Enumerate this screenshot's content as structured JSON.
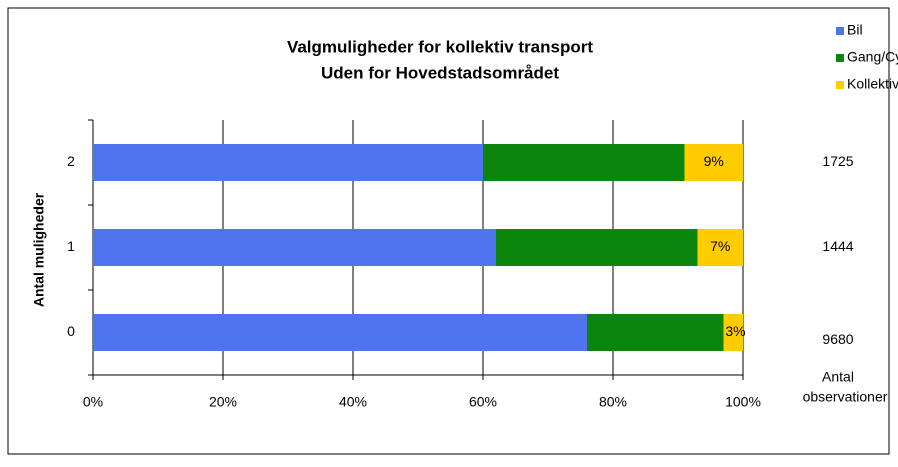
{
  "chart_data": {
    "type": "stacked_bar_horizontal",
    "title": [
      "Valgmuligheder for kollektiv transport",
      "Uden for Hovedstadsområdet"
    ],
    "y_label": "Antal muligheder",
    "categories": [
      "0",
      "1",
      "2"
    ],
    "series": [
      {
        "name": "Bil",
        "color": "#4f74ef",
        "values": [
          76,
          62,
          60
        ]
      },
      {
        "name": "Gang/Cykel",
        "color": "#0b850b",
        "values": [
          21,
          31,
          31
        ]
      },
      {
        "name": "Kollektivt",
        "color": "#ffcc00",
        "values": [
          3,
          7,
          9
        ],
        "value_labels": [
          "3%",
          "7%",
          "9%"
        ]
      }
    ],
    "observations": {
      "label": [
        "Antal",
        "observationer"
      ],
      "values": [
        9680,
        1444,
        1725
      ]
    },
    "xlim": [
      0,
      100
    ],
    "xticks": [
      {
        "value": 0,
        "label": "0%"
      },
      {
        "value": 20,
        "label": "20%"
      },
      {
        "value": 40,
        "label": "40%"
      },
      {
        "value": 60,
        "label": "60%"
      },
      {
        "value": 80,
        "label": "80%"
      },
      {
        "value": 100,
        "label": "100%"
      }
    ],
    "grid": true,
    "legend": "top-right"
  }
}
